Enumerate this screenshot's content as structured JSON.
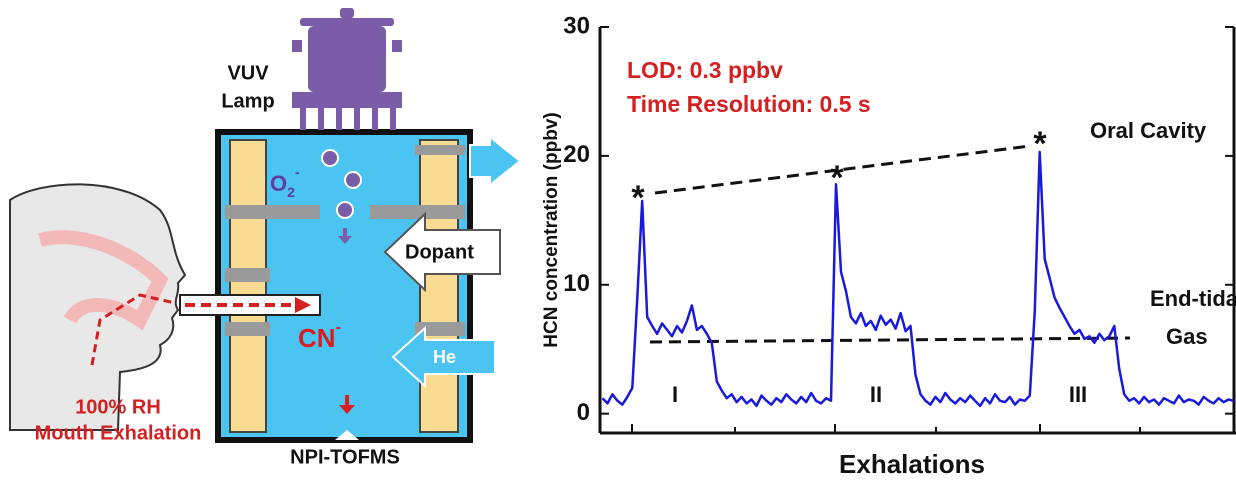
{
  "chart_data": {
    "type": "line",
    "y_label": "HCN concentration (ppbv)",
    "x_label": "Exhalations",
    "ylim": [
      -1.5,
      30
    ],
    "yticks": [
      0,
      10,
      20,
      30
    ],
    "series": [
      {
        "color": "#1a1adc",
        "values": [
          1.2,
          0.8,
          1.5,
          1.0,
          0.7,
          1.3,
          2.0,
          9.0,
          16.5,
          7.5,
          6.8,
          6.2,
          7.0,
          6.5,
          6.0,
          6.8,
          6.3,
          7.2,
          8.4,
          6.5,
          6.8,
          6.2,
          5.5,
          2.5,
          1.8,
          1.2,
          1.5,
          0.9,
          1.3,
          0.8,
          1.1,
          0.6,
          1.4,
          1.0,
          0.7,
          1.2,
          0.9,
          1.5,
          1.1,
          0.8,
          1.3,
          0.9,
          1.6,
          1.0,
          0.8,
          1.2,
          1.0,
          17.8,
          11.0,
          9.5,
          7.5,
          7.0,
          7.8,
          6.8,
          7.2,
          6.5,
          7.6,
          6.9,
          7.3,
          6.6,
          7.8,
          6.4,
          6.8,
          3.0,
          1.5,
          1.0,
          0.7,
          1.3,
          0.9,
          1.6,
          1.1,
          0.8,
          1.2,
          0.9,
          1.4,
          1.0,
          0.6,
          1.2,
          0.8,
          1.5,
          1.0,
          0.9,
          1.3,
          0.7,
          1.1,
          1.0,
          1.4,
          8.0,
          20.3,
          12.0,
          10.5,
          9.0,
          8.2,
          7.5,
          6.8,
          6.2,
          6.5,
          5.8,
          6.0,
          5.5,
          6.2,
          5.7,
          6.0,
          6.8,
          3.5,
          1.5,
          1.0,
          1.2,
          0.8,
          1.3,
          0.9,
          1.1,
          0.7,
          1.2,
          1.0,
          0.8,
          1.4,
          0.9,
          1.1,
          1.0,
          0.7,
          1.3,
          1.0,
          0.8,
          1.2,
          0.9,
          1.1,
          1.0
        ]
      }
    ],
    "annotations": {
      "lod": "LOD: 0.3 ppbv",
      "resolution": "Time Resolution: 0.5 s",
      "oral": "Oral Cavity",
      "end_tidal": "End-tidal",
      "gas": "Gas",
      "stars": [
        "*",
        "*",
        "*"
      ],
      "phases": [
        "I",
        "II",
        "III"
      ]
    }
  },
  "diagram": {
    "lamp": [
      "VUV",
      "Lamp"
    ],
    "o2": {
      "base": "O",
      "sub": "2",
      "sup": "-"
    },
    "dopant": "Dopant",
    "cn": {
      "base": "CN",
      "sup": "-"
    },
    "he": "He",
    "instrument": "NPI-TOFMS",
    "source": [
      "100% RH",
      "Mouth Exhalation"
    ]
  }
}
